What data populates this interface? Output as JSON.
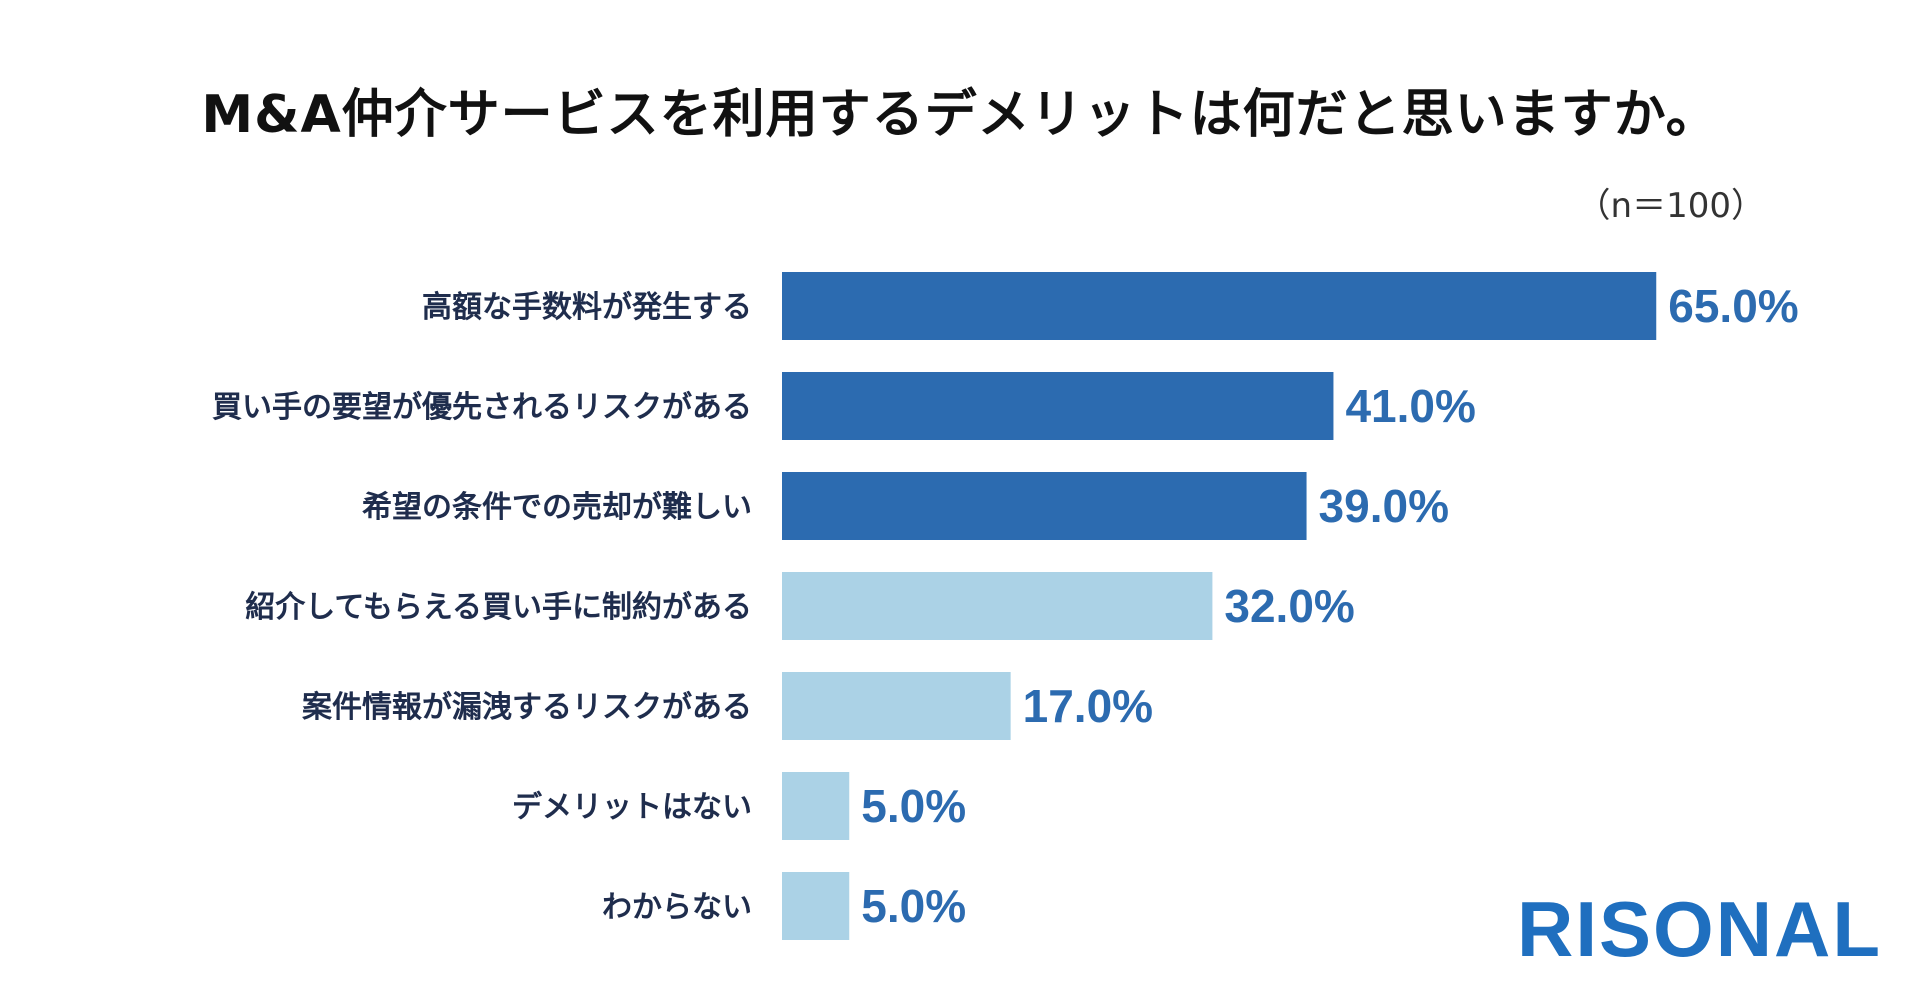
{
  "title": "M&A仲介サービスを利用するデメリットは何だと思いますか。",
  "sample_size": "（n＝100）",
  "logo": "RISONAL",
  "colors": {
    "highlight": "#2c6bb0",
    "normal": "#abd2e6",
    "value_text": "#2c6bb0",
    "logo": "#1f6fbf"
  },
  "chart_data": {
    "type": "bar",
    "orientation": "horizontal",
    "title": "M&A仲介サービスを利用するデメリットは何だと思いますか。",
    "xlabel": "",
    "ylabel": "",
    "xlim": [
      0,
      100
    ],
    "unit": "%",
    "categories": [
      "高額な手数料が発生する",
      "買い手の要望が優先されるリスクがある",
      "希望の条件での売却が難しい",
      "紹介してもらえる買い手に制約がある",
      "案件情報が漏洩するリスクがある",
      "デメリットはない",
      "わからない"
    ],
    "values": [
      65.0,
      41.0,
      39.0,
      32.0,
      17.0,
      5.0,
      5.0
    ],
    "value_labels": [
      "65.0%",
      "41.0%",
      "39.0%",
      "32.0%",
      "17.0%",
      "5.0%",
      "5.0%"
    ],
    "highlighted": [
      true,
      true,
      true,
      false,
      false,
      false,
      false
    ]
  }
}
